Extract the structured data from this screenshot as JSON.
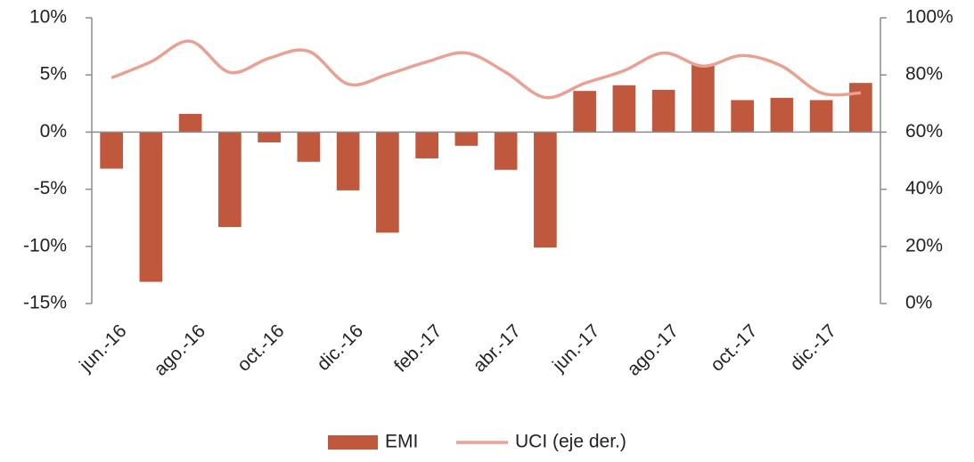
{
  "chart_data": {
    "type": "bar_line",
    "categories": [
      "jun.-16",
      null,
      "ago.-16",
      null,
      "oct.-16",
      null,
      "dic.-16",
      null,
      "feb.-17",
      null,
      "abr.-17",
      null,
      "jun.-17",
      null,
      "ago.-17",
      null,
      "oct.-17",
      null,
      "dic.-17",
      null
    ],
    "series": [
      {
        "name": "EMI",
        "color": "#c0583d",
        "values": [
          -3.2,
          -13.1,
          1.6,
          -8.3,
          -0.9,
          -2.6,
          -5.1,
          -8.8,
          -2.3,
          -1.2,
          -3.3,
          -10.1,
          3.6,
          4.1,
          3.7,
          5.9,
          2.8,
          3.0,
          2.8,
          4.3
        ]
      },
      {
        "name": "UCI (eje der.)",
        "color": "#e8a193",
        "axis": "y2",
        "values": [
          79,
          84.6,
          91.8,
          80.9,
          85.9,
          88.3,
          76.8,
          80.2,
          84.6,
          87.7,
          80.9,
          72.1,
          77.1,
          81.5,
          87.7,
          83.1,
          86.8,
          83.1,
          73.7,
          73.7
        ]
      }
    ],
    "ylim": [
      -15,
      10
    ],
    "yticks": [
      {
        "value": -15,
        "label": "-15%"
      },
      {
        "value": -10,
        "label": "-10%"
      },
      {
        "value": -5,
        "label": "-5%"
      },
      {
        "value": 0,
        "label": "0%"
      },
      {
        "value": 5,
        "label": "5%"
      },
      {
        "value": 10,
        "label": "10%"
      }
    ],
    "y2lim": [
      0,
      100
    ],
    "y2ticks": [
      {
        "value": 0,
        "label": "0%"
      },
      {
        "value": 20,
        "label": "20%"
      },
      {
        "value": 40,
        "label": "40%"
      },
      {
        "value": 60,
        "label": "60%"
      },
      {
        "value": 80,
        "label": "80%"
      },
      {
        "value": 100,
        "label": "100%"
      }
    ],
    "legend": "bottom"
  }
}
